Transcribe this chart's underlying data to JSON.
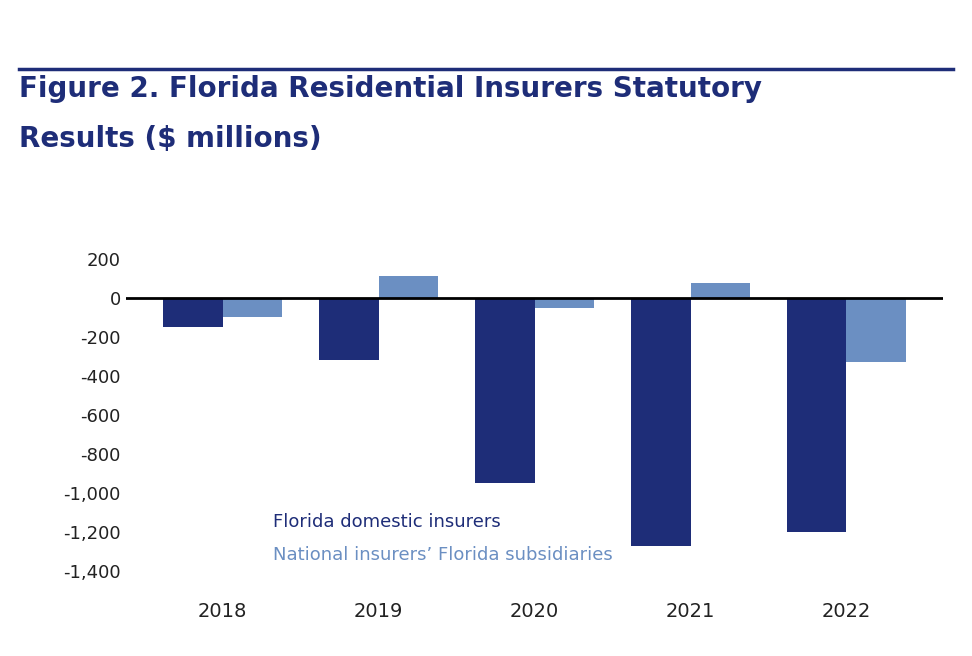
{
  "years": [
    "2018",
    "2019",
    "2020",
    "2021",
    "2022"
  ],
  "florida_domestic": [
    -150,
    -320,
    -950,
    -1270,
    -1200
  ],
  "national_subsidiaries": [
    -100,
    110,
    -50,
    75,
    -330
  ],
  "color_domestic": "#1e2d78",
  "color_national": "#6b8fc2",
  "title_line1": "Figure 2. Florida Residential Insurers Statutory",
  "title_line2": "Results ($ millions)",
  "title_color": "#1e2d78",
  "top_rule_color": "#1e2d78",
  "legend_domestic": "Florida domestic insurers",
  "legend_national": "National insurers’ Florida subsidiaries",
  "ylim": [
    -1500,
    350
  ],
  "yticks": [
    200,
    0,
    -200,
    -400,
    -600,
    -800,
    -1000,
    -1200,
    -1400
  ],
  "background_color": "#ffffff",
  "bar_width": 0.38,
  "tick_fontsize": 13,
  "legend_fontsize": 13,
  "title_fontsize": 20
}
